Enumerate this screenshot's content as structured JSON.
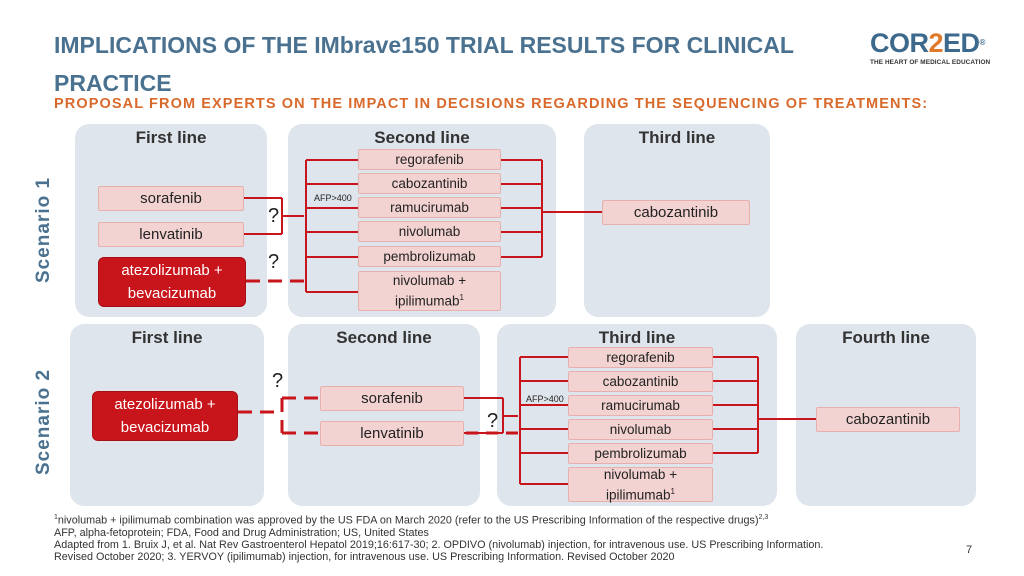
{
  "header": {
    "title": "IMPLICATIONS OF THE IMbrave150 TRIAL RESULTS FOR CLINICAL PRACTICE",
    "subtitle": "PROPOSAL FROM EXPERTS ON THE IMPACT IN DECISIONS REGARDING THE SEQUENCING OF TREATMENTS:"
  },
  "logo": {
    "part1": "COR",
    "part2": "2",
    "part3": "ED",
    "reg": "®",
    "tagline": "THE HEART OF MEDICAL EDUCATION"
  },
  "scenario1": {
    "label": "Scenario 1",
    "headers": [
      "First line",
      "Second line",
      "Third line"
    ],
    "first_line": [
      "sorafenib",
      "lenvatinib"
    ],
    "first_line_highlight": {
      "line1": "atezolizumab +",
      "line2": "bevacizumab"
    },
    "second_line": [
      "regorafenib",
      "cabozantinib",
      "ramucirumab",
      "nivolumab",
      "pembrolizumab"
    ],
    "second_line_combo": {
      "line1": "nivolumab +",
      "line2": "ipilimumab",
      "sup": "1"
    },
    "third_line": "cabozantinib",
    "afp": "AFP>400",
    "question": "?"
  },
  "scenario2": {
    "label": "Scenario 2",
    "headers": [
      "First line",
      "Second line",
      "Third line",
      "Fourth line"
    ],
    "first_line_highlight": {
      "line1": "atezolizumab +",
      "line2": "bevacizumab"
    },
    "second_line": [
      "sorafenib",
      "lenvatinib"
    ],
    "third_line": [
      "regorafenib",
      "cabozantinib",
      "ramucirumab",
      "nivolumab",
      "pembrolizumab"
    ],
    "third_line_combo": {
      "line1": "nivolumab +",
      "line2": "ipilimumab",
      "sup": "1"
    },
    "fourth_line": "cabozantinib",
    "afp": "AFP>400",
    "question": "?"
  },
  "footnotes": {
    "sup1": "1",
    "line1": "nivolumab + ipilimumab combination was approved by the US FDA on March 2020 (refer to the US Prescribing Information of the respective drugs)",
    "line1_sup": "2,3",
    "line2": "AFP, alpha-fetoprotein; FDA, Food and Drug Administration; US, United States",
    "line3": "Adapted from 1. Bruix J, et al. Nat Rev Gastroenterol Hepatol 2019;16:617-30; 2. OPDIVO (nivolumab) injection, for intravenous use. US Prescribing Information.",
    "line4": "Revised October 2020; 3. YERVOY (ipilimumab) injection, for intravenous use. US Prescribing Information. Revised October 2020"
  },
  "page_number": "7",
  "colors": {
    "title": "#4a7290",
    "subtitle": "#d9692b",
    "panel": "#dfe5ec",
    "drug": "#f3d3d1",
    "highlight": "#c8141b",
    "dashed": "#c8141b"
  }
}
